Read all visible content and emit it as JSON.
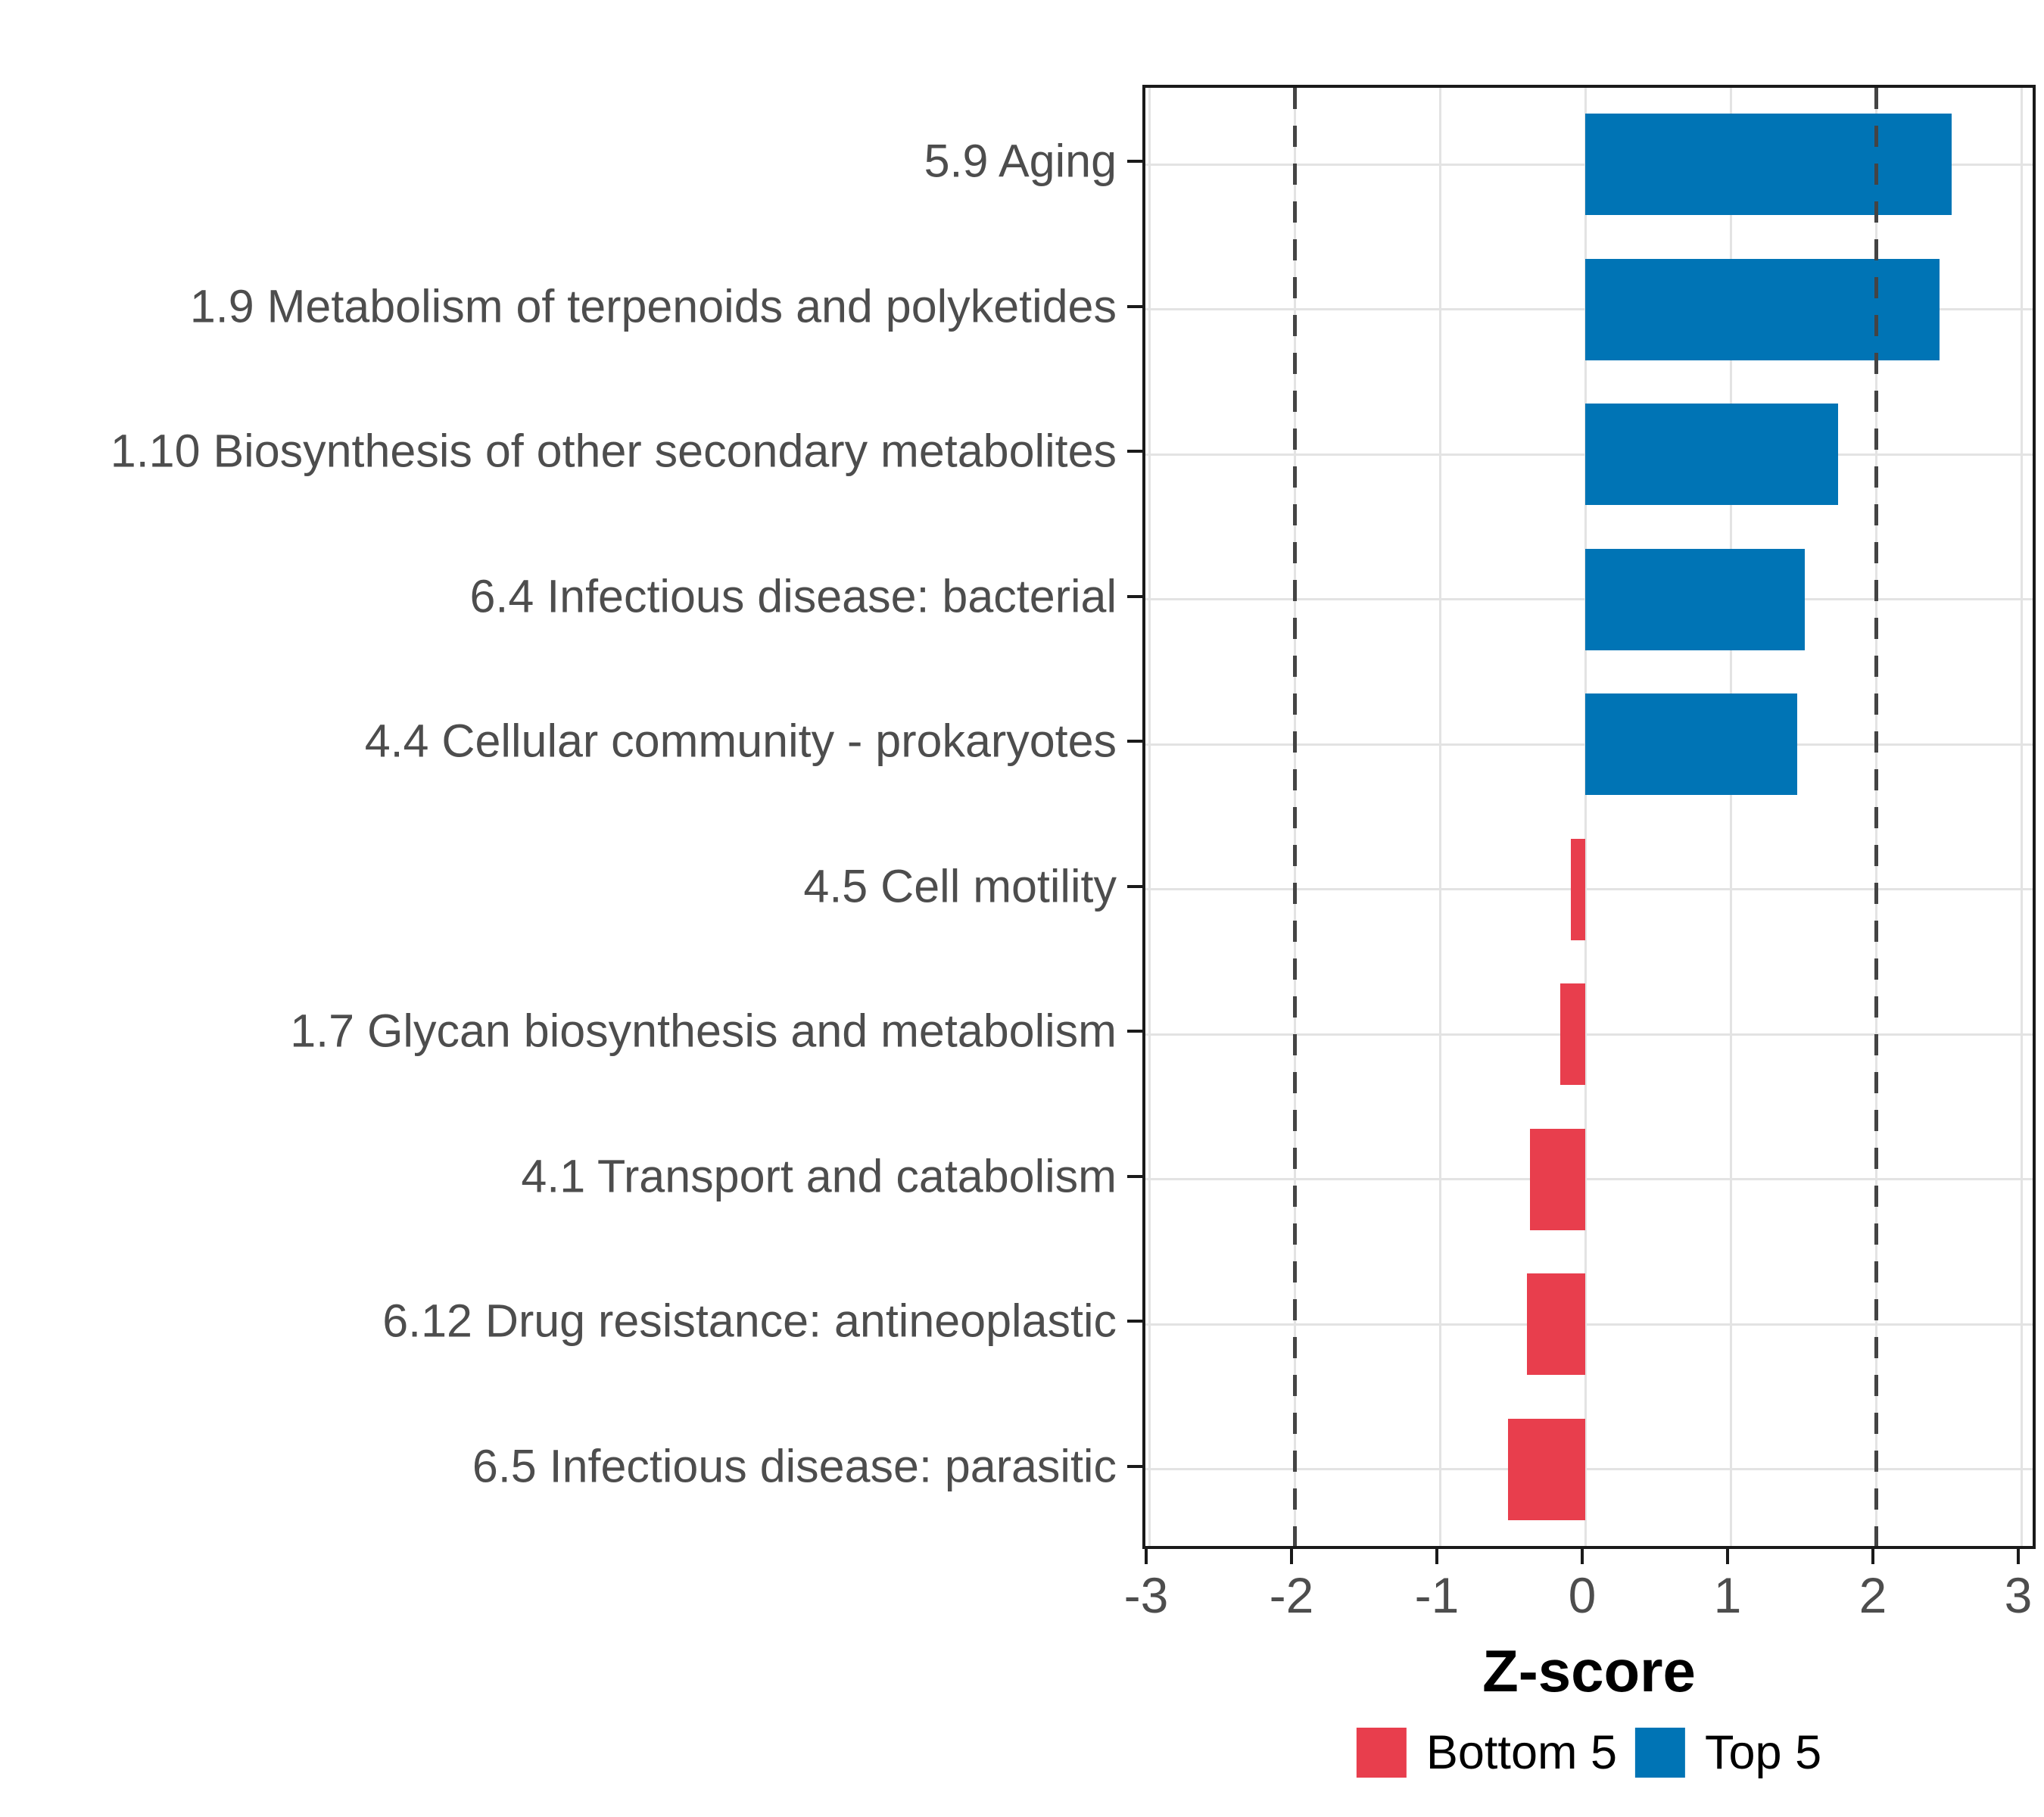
{
  "chart_data": {
    "type": "bar",
    "orientation": "horizontal",
    "title": "",
    "xlabel": "Z-score",
    "ylabel": "",
    "xlim": [
      -3.03,
      3.14
    ],
    "x_ticks": [
      -3,
      -2,
      -1,
      0,
      1,
      2,
      3
    ],
    "grid": true,
    "legend_position": "bottom",
    "reference_lines": {
      "values": [
        -2,
        2
      ],
      "style": "dashed",
      "color": "#444444"
    },
    "bars": [
      {
        "label": "5.9 Aging",
        "value": 2.52,
        "group": "Top 5"
      },
      {
        "label": "1.9 Metabolism of terpenoids and polyketides",
        "value": 2.44,
        "group": "Top 5"
      },
      {
        "label": "1.10 Biosynthesis of other secondary metabolites",
        "value": 1.74,
        "group": "Top 5"
      },
      {
        "label": "6.4 Infectious disease: bacterial",
        "value": 1.51,
        "group": "Top 5"
      },
      {
        "label": "4.4 Cellular community - prokaryotes",
        "value": 1.46,
        "group": "Top 5"
      },
      {
        "label": "4.5 Cell motility",
        "value": -0.1,
        "group": "Bottom 5"
      },
      {
        "label": "1.7 Glycan biosynthesis and metabolism",
        "value": -0.17,
        "group": "Bottom 5"
      },
      {
        "label": "4.1 Transport and catabolism",
        "value": -0.38,
        "group": "Bottom 5"
      },
      {
        "label": "6.12 Drug resistance: antineoplastic",
        "value": -0.4,
        "group": "Bottom 5"
      },
      {
        "label": "6.5 Infectious disease: parasitic",
        "value": -0.53,
        "group": "Bottom 5"
      }
    ],
    "legend": [
      {
        "label": "Bottom 5",
        "color": "#E83E4D"
      },
      {
        "label": "Top 5",
        "color": "#0074B5"
      }
    ],
    "colors": {
      "grid": "#E3E3E3",
      "axis_text": "#4D4D4D",
      "panel_border": "#1A1A1A",
      "axis_title": "#000000"
    }
  }
}
